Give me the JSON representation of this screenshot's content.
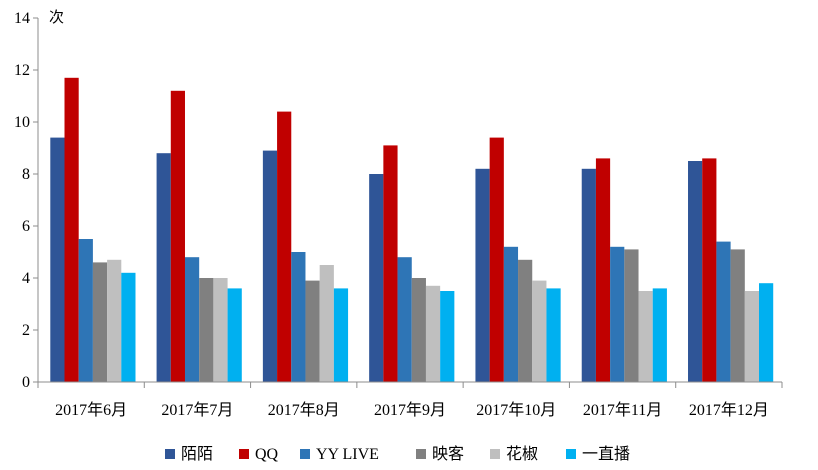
{
  "chart_data": {
    "type": "bar",
    "ylabel": "次",
    "ylim": [
      0,
      14
    ],
    "yticks": [
      0,
      2,
      4,
      6,
      8,
      10,
      12,
      14
    ],
    "categories": [
      "2017年6月",
      "2017年7月",
      "2017年8月",
      "2017年9月",
      "2017年10月",
      "2017年11月",
      "2017年12月"
    ],
    "legend_position": "bottom",
    "grid": false,
    "series": [
      {
        "name": "陌陌",
        "color": "#2F5597",
        "values": [
          9.4,
          8.8,
          8.9,
          8.0,
          8.2,
          8.2,
          8.5
        ]
      },
      {
        "name": "QQ",
        "color": "#C00000",
        "values": [
          11.7,
          11.2,
          10.4,
          9.1,
          9.4,
          8.6,
          8.6
        ]
      },
      {
        "name": "YY LIVE",
        "color": "#2E75B6",
        "values": [
          5.5,
          4.8,
          5.0,
          4.8,
          5.2,
          5.2,
          5.4
        ]
      },
      {
        "name": "映客",
        "color": "#808080",
        "values": [
          4.6,
          4.0,
          3.9,
          4.0,
          4.7,
          5.1,
          5.1
        ]
      },
      {
        "name": "花椒",
        "color": "#BFBFBF",
        "values": [
          4.7,
          4.0,
          4.5,
          3.7,
          3.9,
          3.5,
          3.5
        ]
      },
      {
        "name": "一直播",
        "color": "#00B0F0",
        "values": [
          4.2,
          3.6,
          3.6,
          3.5,
          3.6,
          3.6,
          3.8
        ]
      }
    ]
  }
}
